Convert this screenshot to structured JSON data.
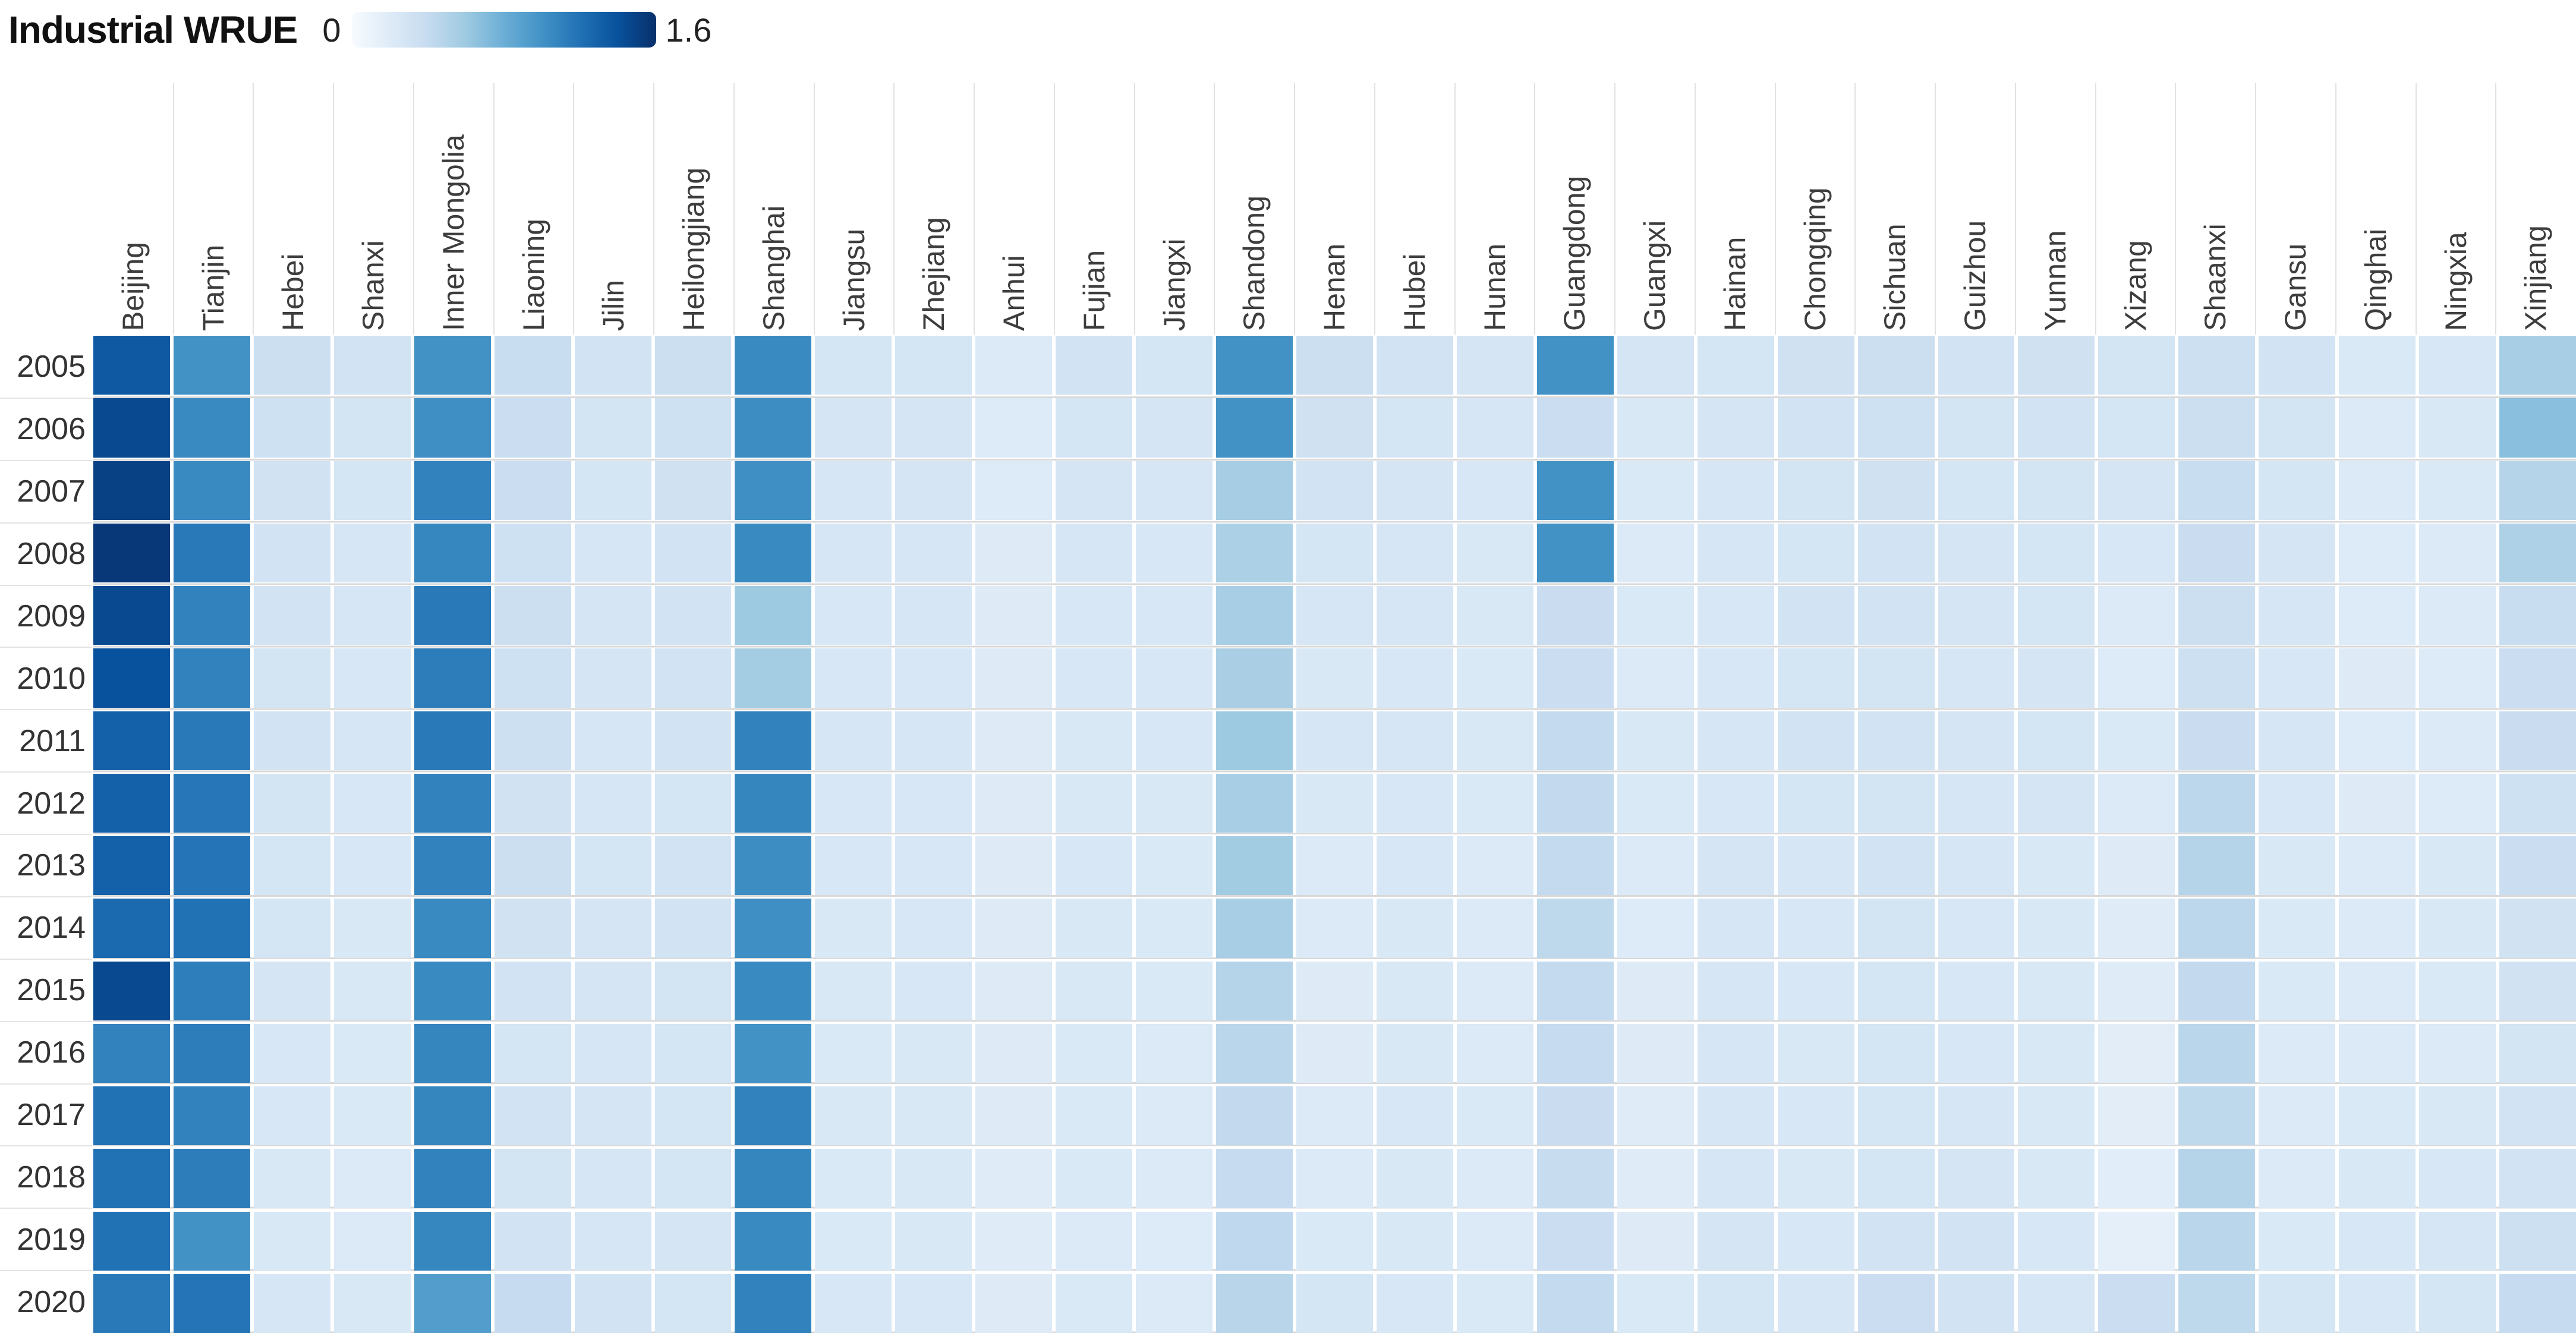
{
  "legend": {
    "title": "Industrial WRUE",
    "min_label": "0",
    "max_label": "1.6"
  },
  "chart_data": {
    "type": "heatmap",
    "title": "Industrial WRUE",
    "colorbar": {
      "min": 0,
      "max": 1.6,
      "colormap": "Blues",
      "position": "top-left"
    },
    "columns": [
      "Beijing",
      "Tianjin",
      "Hebei",
      "Shanxi",
      "Inner Mongolia",
      "Liaoning",
      "Jilin",
      "Heilongjiang",
      "Shanghai",
      "Jiangsu",
      "Zhejiang",
      "Anhui",
      "Fujian",
      "Jiangxi",
      "Shandong",
      "Henan",
      "Hubei",
      "Hunan",
      "Guangdong",
      "Guangxi",
      "Hainan",
      "Chongqing",
      "Sichuan",
      "Guizhou",
      "Yunnan",
      "Xizang",
      "Shaanxi",
      "Gansu",
      "Qinghai",
      "Ningxia",
      "Xinjiang"
    ],
    "rows": [
      "2005",
      "2006",
      "2007",
      "2008",
      "2009",
      "2010",
      "2011",
      "2012",
      "2013",
      "2014",
      "2015",
      "2016",
      "2017",
      "2018",
      "2019",
      "2020"
    ],
    "values": [
      [
        1.35,
        1.0,
        0.35,
        0.3,
        1.0,
        0.38,
        0.3,
        0.35,
        1.05,
        0.28,
        0.28,
        0.22,
        0.3,
        0.28,
        1.0,
        0.35,
        0.3,
        0.27,
        1.0,
        0.27,
        0.28,
        0.32,
        0.35,
        0.3,
        0.32,
        0.29,
        0.34,
        0.3,
        0.23,
        0.25,
        0.55
      ],
      [
        1.45,
        1.05,
        0.33,
        0.29,
        1.02,
        0.36,
        0.29,
        0.33,
        1.03,
        0.27,
        0.27,
        0.21,
        0.28,
        0.27,
        1.0,
        0.32,
        0.28,
        0.26,
        0.36,
        0.24,
        0.27,
        0.3,
        0.33,
        0.29,
        0.3,
        0.28,
        0.35,
        0.29,
        0.22,
        0.24,
        0.68
      ],
      [
        1.5,
        1.05,
        0.31,
        0.28,
        1.1,
        0.36,
        0.28,
        0.32,
        1.02,
        0.26,
        0.27,
        0.21,
        0.27,
        0.26,
        0.56,
        0.3,
        0.27,
        0.25,
        1.0,
        0.23,
        0.26,
        0.29,
        0.32,
        0.28,
        0.29,
        0.27,
        0.38,
        0.28,
        0.22,
        0.23,
        0.48
      ],
      [
        1.55,
        1.15,
        0.3,
        0.26,
        1.07,
        0.33,
        0.26,
        0.3,
        1.05,
        0.26,
        0.26,
        0.2,
        0.26,
        0.25,
        0.53,
        0.28,
        0.26,
        0.24,
        1.0,
        0.22,
        0.26,
        0.28,
        0.3,
        0.27,
        0.28,
        0.25,
        0.37,
        0.27,
        0.21,
        0.22,
        0.52
      ],
      [
        1.45,
        1.1,
        0.3,
        0.26,
        1.15,
        0.35,
        0.27,
        0.3,
        0.6,
        0.25,
        0.26,
        0.2,
        0.25,
        0.25,
        0.55,
        0.26,
        0.26,
        0.24,
        0.37,
        0.23,
        0.25,
        0.3,
        0.3,
        0.27,
        0.28,
        0.22,
        0.35,
        0.26,
        0.21,
        0.22,
        0.38
      ],
      [
        1.4,
        1.1,
        0.29,
        0.25,
        1.13,
        0.33,
        0.27,
        0.3,
        0.57,
        0.25,
        0.25,
        0.2,
        0.25,
        0.25,
        0.54,
        0.24,
        0.25,
        0.23,
        0.36,
        0.22,
        0.25,
        0.28,
        0.29,
        0.26,
        0.27,
        0.21,
        0.34,
        0.25,
        0.2,
        0.21,
        0.36
      ],
      [
        1.3,
        1.15,
        0.3,
        0.26,
        1.15,
        0.34,
        0.26,
        0.3,
        1.1,
        0.26,
        0.26,
        0.2,
        0.24,
        0.25,
        0.6,
        0.26,
        0.26,
        0.24,
        0.41,
        0.24,
        0.26,
        0.3,
        0.3,
        0.27,
        0.28,
        0.23,
        0.37,
        0.26,
        0.21,
        0.22,
        0.37
      ],
      [
        1.3,
        1.17,
        0.29,
        0.25,
        1.1,
        0.31,
        0.26,
        0.28,
        1.08,
        0.25,
        0.25,
        0.2,
        0.24,
        0.24,
        0.55,
        0.24,
        0.25,
        0.23,
        0.42,
        0.23,
        0.25,
        0.28,
        0.29,
        0.26,
        0.27,
        0.22,
        0.45,
        0.25,
        0.2,
        0.21,
        0.33
      ],
      [
        1.3,
        1.18,
        0.28,
        0.25,
        1.1,
        0.35,
        0.28,
        0.3,
        1.03,
        0.25,
        0.25,
        0.2,
        0.25,
        0.23,
        0.58,
        0.22,
        0.25,
        0.22,
        0.41,
        0.22,
        0.27,
        0.26,
        0.3,
        0.26,
        0.24,
        0.2,
        0.48,
        0.24,
        0.22,
        0.24,
        0.36
      ],
      [
        1.25,
        1.2,
        0.28,
        0.24,
        1.05,
        0.31,
        0.27,
        0.3,
        1.02,
        0.24,
        0.25,
        0.2,
        0.24,
        0.23,
        0.55,
        0.22,
        0.24,
        0.22,
        0.44,
        0.21,
        0.26,
        0.25,
        0.29,
        0.25,
        0.24,
        0.19,
        0.45,
        0.23,
        0.22,
        0.24,
        0.31
      ],
      [
        1.45,
        1.12,
        0.27,
        0.24,
        1.05,
        0.3,
        0.27,
        0.29,
        1.05,
        0.24,
        0.25,
        0.2,
        0.24,
        0.23,
        0.48,
        0.2,
        0.24,
        0.22,
        0.41,
        0.2,
        0.26,
        0.25,
        0.28,
        0.25,
        0.24,
        0.19,
        0.42,
        0.23,
        0.22,
        0.23,
        0.31
      ],
      [
        1.1,
        1.13,
        0.25,
        0.23,
        1.08,
        0.28,
        0.26,
        0.28,
        1.0,
        0.23,
        0.24,
        0.2,
        0.23,
        0.22,
        0.46,
        0.2,
        0.24,
        0.22,
        0.4,
        0.2,
        0.26,
        0.24,
        0.28,
        0.25,
        0.24,
        0.17,
        0.46,
        0.22,
        0.22,
        0.22,
        0.29
      ],
      [
        1.2,
        1.1,
        0.25,
        0.23,
        1.08,
        0.3,
        0.27,
        0.28,
        1.1,
        0.24,
        0.24,
        0.2,
        0.23,
        0.22,
        0.42,
        0.22,
        0.25,
        0.23,
        0.37,
        0.19,
        0.26,
        0.25,
        0.28,
        0.26,
        0.24,
        0.17,
        0.44,
        0.22,
        0.23,
        0.24,
        0.3
      ],
      [
        1.2,
        1.13,
        0.24,
        0.22,
        1.1,
        0.29,
        0.26,
        0.28,
        1.08,
        0.23,
        0.24,
        0.19,
        0.23,
        0.22,
        0.4,
        0.22,
        0.24,
        0.22,
        0.39,
        0.19,
        0.26,
        0.24,
        0.28,
        0.27,
        0.24,
        0.18,
        0.48,
        0.22,
        0.24,
        0.25,
        0.3
      ],
      [
        1.2,
        1.0,
        0.24,
        0.22,
        1.07,
        0.3,
        0.26,
        0.27,
        1.05,
        0.23,
        0.24,
        0.19,
        0.22,
        0.21,
        0.43,
        0.23,
        0.24,
        0.22,
        0.36,
        0.2,
        0.27,
        0.25,
        0.3,
        0.3,
        0.25,
        0.15,
        0.46,
        0.23,
        0.25,
        0.26,
        0.34
      ],
      [
        1.15,
        1.18,
        0.26,
        0.24,
        0.92,
        0.4,
        0.3,
        0.28,
        1.1,
        0.25,
        0.25,
        0.2,
        0.23,
        0.22,
        0.47,
        0.28,
        0.25,
        0.23,
        0.41,
        0.23,
        0.28,
        0.26,
        0.36,
        0.3,
        0.26,
        0.36,
        0.44,
        0.28,
        0.25,
        0.28,
        0.4
      ]
    ],
    "layout_hints": {
      "x_labels_rotated_90": true,
      "y_labels_left": true,
      "grid": "faint gray lines visible in white gaps between tiles",
      "legend_position": "top-left"
    }
  },
  "colors": {
    "scale_stops": [
      "#f7fbff",
      "#deebf7",
      "#c6dbef",
      "#9ecae1",
      "#6baed6",
      "#4292c6",
      "#2171b5",
      "#08519c",
      "#08306b"
    ],
    "title_text": "#111111",
    "label_text": "#3d3d3d",
    "year_text": "#333333",
    "grid_line": "#d9d9d9",
    "background": "#ffffff"
  }
}
